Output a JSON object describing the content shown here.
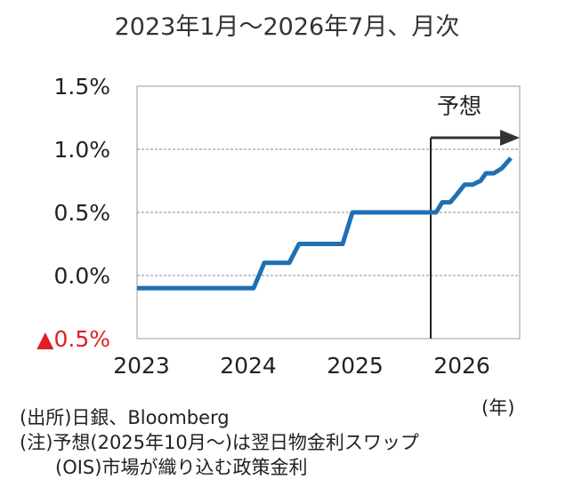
{
  "title": "2023年1月～2026年7月、月次",
  "chart_data": {
    "type": "line",
    "title": "2023年1月～2026年7月、月次",
    "xlabel": "(年)",
    "ylabel": "",
    "ylim": [
      -0.5,
      1.5
    ],
    "xlim": [
      0,
      43
    ],
    "y_ticks": [
      {
        "value": 1.5,
        "label": "1.5%"
      },
      {
        "value": 1.0,
        "label": "1.0%"
      },
      {
        "value": 0.5,
        "label": "0.5%"
      },
      {
        "value": 0.0,
        "label": "0.0%"
      },
      {
        "value": -0.5,
        "label": "▲0.5%",
        "color": "#e02020"
      }
    ],
    "x_ticks": [
      {
        "value": 0,
        "label": "2023"
      },
      {
        "value": 12,
        "label": "2024"
      },
      {
        "value": 24,
        "label": "2025"
      },
      {
        "value": 36,
        "label": "2026"
      }
    ],
    "gridlines": [
      1.0,
      0.5,
      0.0
    ],
    "forecast_start": 33,
    "forecast_label": "予想",
    "series": [
      {
        "name": "政策金利",
        "color": "#1f6fb5",
        "points": [
          [
            0,
            -0.1
          ],
          [
            13.1,
            -0.1
          ],
          [
            14.3,
            0.1
          ],
          [
            17.1,
            0.1
          ],
          [
            18.2,
            0.25
          ],
          [
            23.1,
            0.25
          ],
          [
            24.2,
            0.5
          ],
          [
            33.6,
            0.5
          ],
          [
            34.3,
            0.58
          ],
          [
            35.2,
            0.58
          ],
          [
            35.8,
            0.63
          ],
          [
            36.8,
            0.72
          ],
          [
            37.7,
            0.72
          ],
          [
            38.6,
            0.75
          ],
          [
            39.2,
            0.81
          ],
          [
            40.1,
            0.81
          ],
          [
            41.0,
            0.85
          ],
          [
            42.0,
            0.93
          ]
        ]
      }
    ]
  },
  "notes": {
    "year_unit": "(年)",
    "source": "(出所)日銀、Bloomberg",
    "note_line1": "(注)予想(2025年10月～)は翌日物金利スワップ",
    "note_line2": "(OIS)市場が織り込む政策金利"
  }
}
